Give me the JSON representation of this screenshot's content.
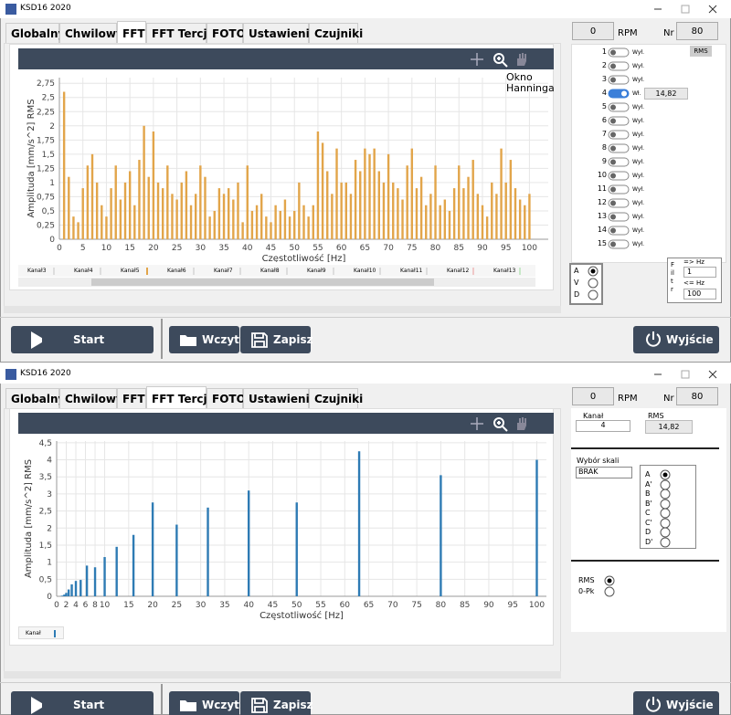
{
  "windows": [
    {
      "title": "KSD16 2020",
      "tabs": [
        "Globalny",
        "Chwilowy",
        "FFT",
        "FFT Tercje",
        "FOTO",
        "Ustawienia",
        "Czujniki"
      ],
      "rpm": "0",
      "rpm_label": "RPM",
      "nr_label": "Nr",
      "nr": "80",
      "chart": {
        "type": "bar",
        "annotation": "Okno Hanninga",
        "y_label": "Amplituda [mm/s^2] RMS",
        "x_label": "Częstotliwość [Hz]",
        "color": "#e2a54a",
        "x": [
          1,
          2,
          3,
          4,
          5,
          6,
          7,
          8,
          9,
          10,
          11,
          12,
          13,
          14,
          15,
          16,
          17,
          18,
          19,
          20,
          21,
          22,
          23,
          24,
          25,
          26,
          27,
          28,
          29,
          30,
          31,
          32,
          33,
          34,
          35,
          36,
          37,
          38,
          39,
          40,
          41,
          42,
          43,
          44,
          45,
          46,
          47,
          48,
          49,
          50,
          51,
          52,
          53,
          54,
          55,
          56,
          57,
          58,
          59,
          60,
          61,
          62,
          63,
          64,
          65,
          66,
          67,
          68,
          69,
          70,
          71,
          72,
          73,
          74,
          75,
          76,
          77,
          78,
          79,
          80,
          81,
          82,
          83,
          84,
          85,
          86,
          87,
          88,
          89,
          90,
          91,
          92,
          93,
          94,
          95,
          96,
          97,
          98,
          99,
          100
        ],
        "values": [
          2.6,
          1.1,
          0.4,
          0.3,
          0.9,
          1.3,
          1.5,
          1.0,
          0.6,
          0.4,
          0.9,
          1.3,
          0.7,
          1.0,
          1.2,
          0.6,
          1.4,
          2.0,
          1.1,
          1.9,
          1.0,
          0.9,
          1.3,
          0.8,
          0.7,
          1.0,
          1.2,
          0.6,
          0.8,
          1.3,
          1.1,
          0.4,
          0.5,
          0.9,
          0.8,
          0.9,
          0.7,
          1.0,
          0.3,
          1.3,
          0.5,
          0.6,
          0.8,
          0.4,
          0.3,
          0.6,
          0.5,
          0.7,
          0.4,
          0.5,
          1.0,
          0.6,
          0.4,
          0.6,
          1.9,
          1.7,
          1.2,
          0.8,
          1.6,
          1.0,
          1.0,
          0.8,
          1.4,
          1.2,
          1.6,
          1.5,
          1.6,
          1.2,
          1.0,
          1.5,
          1.0,
          0.9,
          0.7,
          1.3,
          1.6,
          0.9,
          1.1,
          0.6,
          0.8,
          1.3,
          0.6,
          0.7,
          0.5,
          0.9,
          1.3,
          0.9,
          1.1,
          1.4,
          0.8,
          0.6,
          0.4,
          1.0,
          0.8,
          1.6,
          1.0,
          1.4,
          0.9,
          0.7,
          0.6,
          0.8
        ],
        "xlim": [
          0,
          104
        ],
        "ylim": [
          0,
          2.85
        ],
        "xticks": [
          0,
          5,
          10,
          15,
          20,
          25,
          30,
          35,
          40,
          45,
          50,
          55,
          60,
          65,
          70,
          75,
          80,
          85,
          90,
          95,
          100
        ],
        "yticks": [
          0,
          {
            "value": 0.25,
            "label": "0,25"
          },
          {
            "value": 0.5,
            "label": "0,5"
          },
          {
            "value": 0.75,
            "label": "0,75"
          },
          1,
          {
            "value": 1.25,
            "label": "1,25"
          },
          {
            "value": 1.5,
            "label": "1,5"
          },
          {
            "value": 1.75,
            "label": "1,75"
          },
          2,
          {
            "value": 2.25,
            "label": "2,25"
          },
          {
            "value": 2.5,
            "label": "2,5"
          },
          {
            "value": 2.75,
            "label": "2,75"
          }
        ],
        "grid": true
      },
      "legend": [
        {
          "name": "Kanał3",
          "color": "#dddddd"
        },
        {
          "name": "Kanał4",
          "color": "#dddddd"
        },
        {
          "name": "Kanał5",
          "color": "#e2a54a"
        },
        {
          "name": "Kanał6",
          "color": "#dddddd"
        },
        {
          "name": "Kanał7",
          "color": "#dddddd"
        },
        {
          "name": "Kanał8",
          "color": "#dddddd"
        },
        {
          "name": "Kanał9",
          "color": "#dddddd"
        },
        {
          "name": "Kanał10",
          "color": "#dddddd"
        },
        {
          "name": "Kanał11",
          "color": "#dddddd"
        },
        {
          "name": "Kanał12",
          "color": "#f0c8c8"
        },
        {
          "name": "Kanał13",
          "color": "#c8e8c8"
        }
      ],
      "rms_button": "RMS",
      "channels": [
        {
          "num": "1",
          "state": "Wył."
        },
        {
          "num": "2",
          "state": "Wył."
        },
        {
          "num": "3",
          "state": "Wył."
        },
        {
          "num": "4",
          "state": "Wł.",
          "on": true,
          "value": "14,82"
        },
        {
          "num": "5",
          "state": "Wył."
        },
        {
          "num": "6",
          "state": "Wył."
        },
        {
          "num": "7",
          "state": "Wył."
        },
        {
          "num": "8",
          "state": "Wył."
        },
        {
          "num": "9",
          "state": "Wył."
        },
        {
          "num": "10",
          "state": "Wył."
        },
        {
          "num": "11",
          "state": "Wył."
        },
        {
          "num": "12",
          "state": "Wył."
        },
        {
          "num": "13",
          "state": "Wył."
        },
        {
          "num": "14",
          "state": "Wył."
        },
        {
          "num": "15",
          "state": "Wył."
        }
      ],
      "avd": {
        "options": [
          "A",
          "V",
          "D"
        ],
        "selected": 0
      },
      "filter": {
        "label": "Filtr",
        "low_label": "=> Hz",
        "low": "1",
        "high_label": "<= Hz",
        "high": "100"
      },
      "buttons": [
        "Start",
        "Wczytaj",
        "Zapisz",
        "Wyjście"
      ]
    },
    {
      "title": "KSD16 2020",
      "tabs": [
        "Globalny",
        "Chwilowy",
        "FFT",
        "FFT Tercje",
        "FOTO",
        "Ustawienia",
        "Czujniki"
      ],
      "rpm": "0",
      "rpm_label": "RPM",
      "nr_label": "Nr",
      "nr": "80",
      "chart": {
        "type": "bar",
        "y_label": "Amplituda [mm/s^2] RMS",
        "x_label": "Częstotliwość [Hz]",
        "color": "#2e7bb4",
        "x": [
          1,
          1.25,
          1.6,
          2,
          2.5,
          3.15,
          4,
          5,
          6.3,
          8,
          10,
          12.5,
          16,
          20,
          25,
          31.5,
          40,
          50,
          63,
          80,
          100
        ],
        "values": [
          0.01,
          0.02,
          0.05,
          0.1,
          0.2,
          0.35,
          0.45,
          0.48,
          0.9,
          0.85,
          1.15,
          1.45,
          1.8,
          2.75,
          2.1,
          2.6,
          3.1,
          2.75,
          4.25,
          3.55,
          4.0
        ],
        "xlim": [
          0,
          102
        ],
        "ylim": [
          0,
          4.55
        ],
        "xticks": [
          0,
          2,
          4,
          6,
          8,
          10,
          15,
          20,
          25,
          30,
          35,
          40,
          45,
          50,
          55,
          60,
          65,
          70,
          75,
          80,
          85,
          90,
          95,
          100
        ],
        "yticks": [
          0,
          {
            "value": 0.5,
            "label": "0,5"
          },
          1,
          {
            "value": 1.5,
            "label": "1,5"
          },
          2,
          {
            "value": 2.5,
            "label": "2,5"
          },
          3,
          {
            "value": 3.5,
            "label": "3,5"
          },
          4,
          {
            "value": 4.5,
            "label": "4,5"
          }
        ],
        "grid": true
      },
      "legend": [
        {
          "name": "Kanał",
          "color": "#2e7bb4"
        }
      ],
      "channel_label": "Kanał",
      "channel": "4",
      "rms_label": "RMS",
      "rms_value": "14,82",
      "scale_label": "Wybór skali",
      "scale_select": "BRAK",
      "scale": {
        "options": [
          "A",
          "A'",
          "B",
          "B'",
          "C",
          "C'",
          "D",
          "D'"
        ],
        "selected": 0
      },
      "mode": {
        "options": [
          "RMS",
          "0-Pk"
        ],
        "selected": 0
      },
      "buttons": [
        "Start",
        "Wczytaj",
        "Zapisz",
        "Wyjście"
      ]
    }
  ]
}
